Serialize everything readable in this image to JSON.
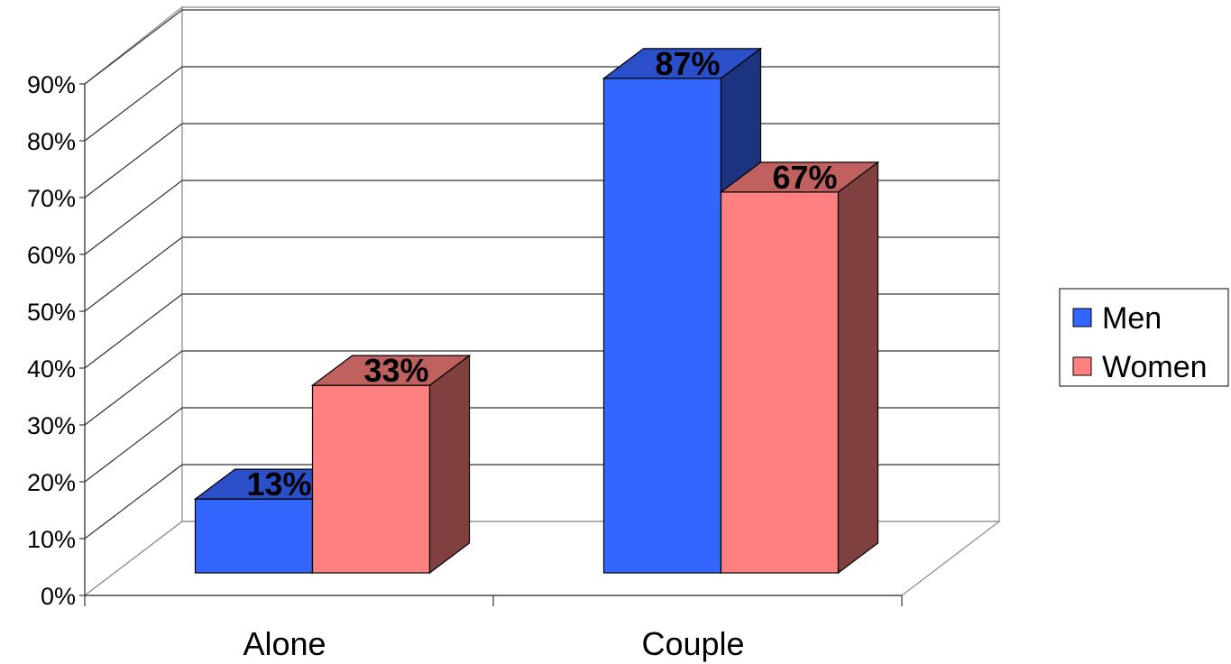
{
  "chart_data": {
    "type": "bar",
    "style": "3d-clustered-column",
    "categories": [
      "Alone",
      "Couple"
    ],
    "series": [
      {
        "name": "Men",
        "values": [
          13,
          87
        ],
        "labels": [
          "13%",
          "87%"
        ],
        "color": "#3366ff",
        "top_color": "#2b4fc9",
        "side_color": "#1c3380"
      },
      {
        "name": "Women",
        "values": [
          33,
          67
        ],
        "labels": [
          "33%",
          "67%"
        ],
        "color": "#ff8080",
        "top_color": "#c0605f",
        "side_color": "#804040"
      }
    ],
    "ylim": [
      0,
      90
    ],
    "yticks": [
      0,
      10,
      20,
      30,
      40,
      50,
      60,
      70,
      80,
      90
    ],
    "ytick_labels": [
      "0%",
      "10%",
      "20%",
      "30%",
      "40%",
      "50%",
      "60%",
      "70%",
      "80%",
      "90%"
    ],
    "grid": true,
    "legend_position": "right"
  }
}
